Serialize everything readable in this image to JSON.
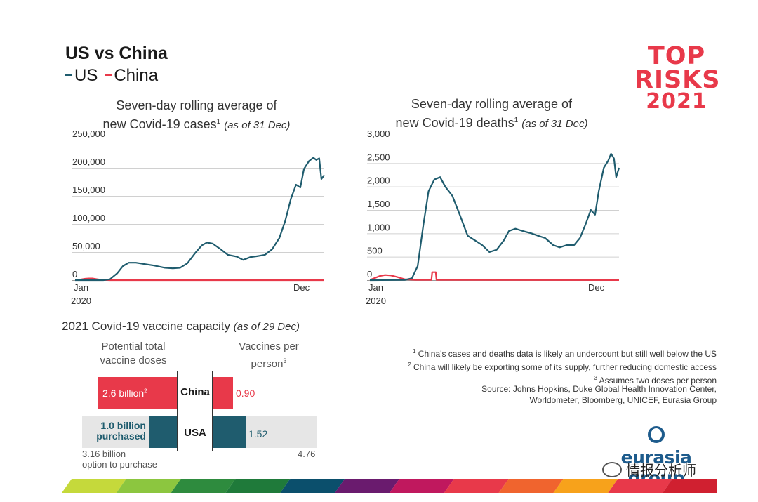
{
  "header": {
    "title": "US vs China",
    "legend": [
      {
        "label": "US",
        "color": "#1f5c6e"
      },
      {
        "label": "China",
        "color": "#e8394a"
      }
    ]
  },
  "logo": {
    "line1": "TOP",
    "line2": "RISKS",
    "line3": "2021",
    "color": "#e8394a"
  },
  "chart_data": [
    {
      "type": "line",
      "title_line1": "Seven-day rolling average of",
      "title_line2": "new Covid-19 cases",
      "title_sup": "1",
      "title_sub": "(as of 31 Dec)",
      "x_labels": [
        "Jan 2020",
        "Dec"
      ],
      "x_range": [
        "2020-01-22",
        "2020-12-31"
      ],
      "y_ticks": [
        "0",
        "50,000",
        "100,000",
        "150,000",
        "200,000",
        "250,000"
      ],
      "ylim": [
        0,
        250000
      ],
      "grid": true,
      "series": [
        {
          "name": "US",
          "color": "#1f5c6e",
          "x": [
            "2020-01-22",
            "2020-03-01",
            "2020-03-10",
            "2020-03-20",
            "2020-03-28",
            "2020-04-05",
            "2020-04-15",
            "2020-04-25",
            "2020-05-10",
            "2020-05-25",
            "2020-06-05",
            "2020-06-15",
            "2020-06-25",
            "2020-07-05",
            "2020-07-15",
            "2020-07-22",
            "2020-07-30",
            "2020-08-10",
            "2020-08-20",
            "2020-09-01",
            "2020-09-10",
            "2020-09-20",
            "2020-10-01",
            "2020-10-10",
            "2020-10-20",
            "2020-10-30",
            "2020-11-07",
            "2020-11-15",
            "2020-11-22",
            "2020-11-28",
            "2020-12-03",
            "2020-12-10",
            "2020-12-16",
            "2020-12-20",
            "2020-12-24",
            "2020-12-27",
            "2020-12-31"
          ],
          "y": [
            0,
            50,
            1500,
            12000,
            25000,
            31000,
            31000,
            29000,
            26000,
            22000,
            21000,
            22000,
            30000,
            47000,
            62000,
            67000,
            65000,
            55000,
            45000,
            42000,
            36000,
            41000,
            43000,
            45000,
            55000,
            75000,
            105000,
            145000,
            170000,
            165000,
            198000,
            212000,
            218000,
            214000,
            217000,
            180000,
            187000
          ]
        },
        {
          "name": "China",
          "color": "#e8394a",
          "x": [
            "2020-01-22",
            "2020-01-28",
            "2020-02-05",
            "2020-02-10",
            "2020-02-15",
            "2020-02-20",
            "2020-02-28",
            "2020-03-10",
            "2020-12-31"
          ],
          "y": [
            200,
            900,
            2500,
            3000,
            3000,
            2000,
            400,
            50,
            20
          ]
        }
      ]
    },
    {
      "type": "line",
      "title_line1": "Seven-day rolling average of",
      "title_line2": "new Covid-19 deaths",
      "title_sup": "1",
      "title_sub": "(as of 31 Dec)",
      "x_labels": [
        "Jan 2020",
        "Dec"
      ],
      "x_range": [
        "2020-01-22",
        "2020-12-31"
      ],
      "y_ticks": [
        "0",
        "500",
        "1,000",
        "1,500",
        "2,000",
        "2,500",
        "3,000"
      ],
      "ylim": [
        0,
        3000
      ],
      "grid": true,
      "series": [
        {
          "name": "US",
          "color": "#1f5c6e",
          "x": [
            "2020-01-22",
            "2020-03-10",
            "2020-03-20",
            "2020-03-28",
            "2020-04-05",
            "2020-04-12",
            "2020-04-20",
            "2020-04-28",
            "2020-05-05",
            "2020-05-15",
            "2020-05-25",
            "2020-06-05",
            "2020-06-15",
            "2020-06-25",
            "2020-07-05",
            "2020-07-15",
            "2020-07-25",
            "2020-08-01",
            "2020-08-10",
            "2020-08-20",
            "2020-09-01",
            "2020-09-10",
            "2020-09-20",
            "2020-10-01",
            "2020-10-10",
            "2020-10-20",
            "2020-10-30",
            "2020-11-07",
            "2020-11-15",
            "2020-11-22",
            "2020-11-28",
            "2020-12-03",
            "2020-12-10",
            "2020-12-16",
            "2020-12-20",
            "2020-12-24",
            "2020-12-27",
            "2020-12-31"
          ],
          "y": [
            0,
            5,
            40,
            300,
            1200,
            1900,
            2150,
            2200,
            2000,
            1800,
            1400,
            950,
            850,
            750,
            600,
            650,
            850,
            1050,
            1100,
            1050,
            1000,
            950,
            900,
            750,
            700,
            750,
            750,
            900,
            1200,
            1500,
            1400,
            1900,
            2400,
            2550,
            2700,
            2600,
            2200,
            2400
          ]
        },
        {
          "name": "China",
          "color": "#e8394a",
          "x": [
            "2020-01-22",
            "2020-01-28",
            "2020-02-05",
            "2020-02-12",
            "2020-02-20",
            "2020-02-28",
            "2020-03-10",
            "2020-03-25",
            "2020-04-16",
            "2020-04-17",
            "2020-04-22",
            "2020-04-23",
            "2020-12-31"
          ],
          "y": [
            5,
            40,
            90,
            110,
            100,
            70,
            20,
            5,
            5,
            170,
            170,
            5,
            2
          ]
        }
      ]
    },
    {
      "type": "bar",
      "title": "2021 Covid-19 vaccine capacity",
      "title_sub": "(as of 29 Dec)",
      "col1_header_line1": "Potential total",
      "col1_header_line2": "vaccine doses",
      "col2_header_line1": "Vaccines per",
      "col2_header_line2": "person",
      "col2_sup": "3",
      "categories": [
        "China",
        "USA"
      ],
      "doses": {
        "China": {
          "value_billion": 2.6,
          "label": "2.6 billion",
          "sup": "2"
        },
        "USA": {
          "purchased_billion": 1.0,
          "purchased_label_line1": "1.0 billion",
          "purchased_label_line2": "purchased",
          "total_billion": 3.16,
          "total_label_line1": "3.16 billion",
          "total_label_line2": "option to purchase"
        }
      },
      "per_person": {
        "China": {
          "value": 0.9,
          "label": "0.90"
        },
        "USA": {
          "value": 1.52,
          "label": "1.52",
          "potential": 4.76,
          "potential_label": "4.76"
        }
      },
      "colors": {
        "china": "#e8394a",
        "usa": "#1f5c6e",
        "option": "#e6e6e6"
      }
    }
  ],
  "notes": [
    {
      "sup": "1",
      "text": "China's cases and deaths data is likely an undercount but still well below the US"
    },
    {
      "sup": "2",
      "text": "China will likely be exporting some of its supply, further reducing domestic access"
    },
    {
      "sup": "3",
      "text": "Assumes two doses per person"
    }
  ],
  "source": {
    "line1": "Source: Johns Hopkins, Duke Global Health Innovation Center,",
    "line2": "Worldometer, Bloomberg, UNICEF, Eurasia Group"
  },
  "brand": {
    "name": "eurasia group",
    "color": "#1d5b8c"
  },
  "watermark": {
    "text": "情报分析师"
  },
  "strip_colors": [
    "#c5d93b",
    "#8cc63f",
    "#2e8b3e",
    "#1f7a3a",
    "#0b4f6c",
    "#6a1b6e",
    "#c0185e",
    "#e8394a",
    "#f0642e",
    "#f7a21b",
    "#e8394a",
    "#d02030"
  ]
}
